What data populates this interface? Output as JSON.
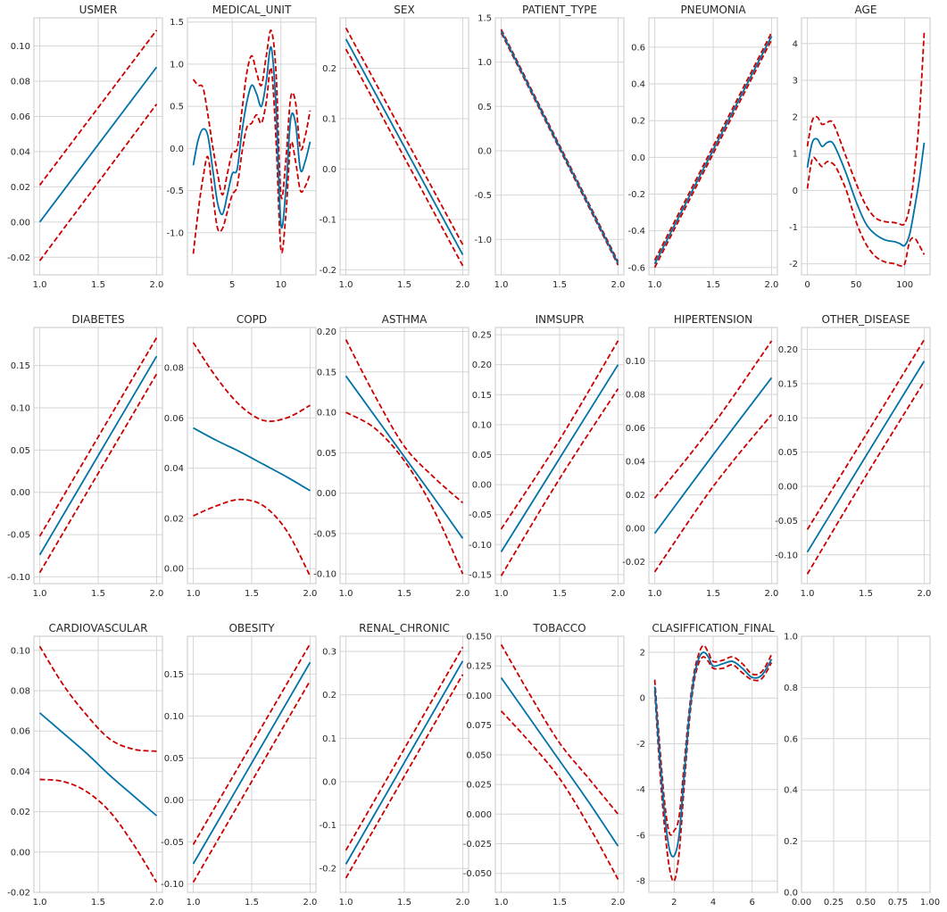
{
  "colors": {
    "mean": "#0072a8",
    "ci": "#cc0000",
    "grid": "#d6d6d6",
    "frame": "#c8c8c8"
  },
  "chart_data": [
    {
      "type": "line",
      "title": "USMER",
      "xlim": [
        0.95,
        2.05
      ],
      "ylim": [
        -0.03,
        0.116
      ],
      "xticks": [
        1,
        1.5,
        2
      ],
      "xtick_labels": [
        "1.0",
        "1.5",
        "2.0"
      ],
      "yticks": [
        -0.02,
        0,
        0.02,
        0.04,
        0.06,
        0.08,
        0.1
      ],
      "ytick_labels": [
        "-0.02",
        "0.00",
        "0.02",
        "0.04",
        "0.06",
        "0.08",
        "0.10"
      ],
      "x": [
        1,
        2
      ],
      "mean": [
        0.0,
        0.088
      ],
      "lower": [
        -0.022,
        0.067
      ],
      "upper": [
        0.021,
        0.109
      ]
    },
    {
      "type": "line",
      "title": "MEDICAL_UNIT",
      "xlim": [
        0.4,
        13.6
      ],
      "ylim": [
        -1.5,
        1.55
      ],
      "xticks": [
        5,
        10
      ],
      "xtick_labels": [
        "5",
        "10"
      ],
      "yticks": [
        -1,
        -0.5,
        0,
        0.5,
        1,
        1.5
      ],
      "ytick_labels": [
        "-1.0",
        "-0.5",
        "0.0",
        "0.5",
        "1.0",
        "1.5"
      ],
      "x": [
        1,
        1.5,
        2,
        2.5,
        3,
        3.5,
        4,
        4.5,
        5,
        5.5,
        6,
        6.5,
        7,
        7.5,
        8,
        8.5,
        9,
        9.5,
        10,
        10.5,
        11,
        11.5,
        12,
        12.5,
        13
      ],
      "mean": [
        -0.2,
        0.1,
        0.23,
        0.15,
        -0.25,
        -0.65,
        -0.78,
        -0.55,
        -0.3,
        -0.25,
        0.2,
        0.55,
        0.75,
        0.65,
        0.5,
        0.8,
        1.2,
        0.5,
        -0.9,
        -0.5,
        0.35,
        0.3,
        -0.25,
        -0.15,
        0.08
      ],
      "lower": [
        -1.25,
        -0.75,
        -0.35,
        -0.1,
        -0.55,
        -0.95,
        -0.95,
        -0.75,
        -0.55,
        -0.45,
        -0.05,
        0.25,
        0.3,
        0.4,
        0.3,
        0.55,
        0.95,
        0.1,
        -1.2,
        -0.8,
        0.05,
        -0.15,
        -0.5,
        -0.45,
        -0.3
      ],
      "upper": [
        0.82,
        0.75,
        0.72,
        0.4,
        0.02,
        -0.3,
        -0.55,
        -0.3,
        -0.05,
        0.0,
        0.45,
        0.9,
        1.1,
        0.9,
        0.75,
        1.1,
        1.4,
        0.9,
        -0.55,
        -0.15,
        0.6,
        0.55,
        0.0,
        0.15,
        0.45
      ]
    },
    {
      "type": "line",
      "title": "SEX",
      "xlim": [
        0.95,
        2.05
      ],
      "ylim": [
        -0.21,
        0.3
      ],
      "xticks": [
        1,
        1.5,
        2
      ],
      "xtick_labels": [
        "1.0",
        "1.5",
        "2.0"
      ],
      "yticks": [
        -0.2,
        -0.1,
        0,
        0.1,
        0.2
      ],
      "ytick_labels": [
        "-0.2",
        "-0.1",
        "0.0",
        "0.1",
        "0.2"
      ],
      "x": [
        1,
        2
      ],
      "mean": [
        0.258,
        -0.17
      ],
      "lower": [
        0.238,
        -0.192
      ],
      "upper": [
        0.28,
        -0.15
      ]
    },
    {
      "type": "line",
      "title": "PATIENT_TYPE",
      "xlim": [
        0.95,
        2.05
      ],
      "ylim": [
        -1.4,
        1.5
      ],
      "xticks": [
        1,
        1.5,
        2
      ],
      "xtick_labels": [
        "1.0",
        "1.5",
        "2.0"
      ],
      "yticks": [
        -1,
        -0.5,
        0,
        0.5,
        1,
        1.5
      ],
      "ytick_labels": [
        "-1.0",
        "-0.5",
        "0.0",
        "0.5",
        "1.0",
        "1.5"
      ],
      "x": [
        1,
        2
      ],
      "mean": [
        1.35,
        -1.27
      ],
      "lower": [
        1.33,
        -1.29
      ],
      "upper": [
        1.37,
        -1.25
      ]
    },
    {
      "type": "line",
      "title": "PNEUMONIA",
      "xlim": [
        0.95,
        2.05
      ],
      "ylim": [
        -0.64,
        0.76
      ],
      "xticks": [
        1,
        1.5,
        2
      ],
      "xtick_labels": [
        "1.0",
        "1.5",
        "2.0"
      ],
      "yticks": [
        -0.6,
        -0.4,
        -0.2,
        0,
        0.2,
        0.4,
        0.6
      ],
      "ytick_labels": [
        "-0.6",
        "-0.4",
        "-0.2",
        "0.0",
        "0.2",
        "0.4",
        "0.6"
      ],
      "x": [
        1,
        2
      ],
      "mean": [
        -0.58,
        0.66
      ],
      "lower": [
        -0.6,
        0.64
      ],
      "upper": [
        -0.56,
        0.68
      ]
    },
    {
      "type": "line",
      "title": "AGE",
      "xlim": [
        -6,
        126
      ],
      "ylim": [
        -2.3,
        4.7
      ],
      "xticks": [
        0,
        50,
        100
      ],
      "xtick_labels": [
        "0",
        "50",
        "100"
      ],
      "yticks": [
        -2,
        -1,
        0,
        1,
        2,
        3,
        4
      ],
      "ytick_labels": [
        "-2",
        "-1",
        "0",
        "1",
        "2",
        "3",
        "4"
      ],
      "x": [
        0,
        5,
        10,
        15,
        20,
        25,
        30,
        40,
        50,
        60,
        70,
        80,
        90,
        95,
        100,
        105,
        110,
        115,
        120
      ],
      "mean": [
        0.62,
        1.3,
        1.4,
        1.2,
        1.3,
        1.32,
        1.1,
        0.45,
        -0.3,
        -0.9,
        -1.2,
        -1.35,
        -1.4,
        -1.45,
        -1.5,
        -1.2,
        -0.5,
        0.3,
        1.3
      ],
      "lower": [
        0.05,
        0.85,
        0.8,
        0.65,
        0.78,
        0.75,
        0.6,
        0.0,
        -0.85,
        -1.45,
        -1.8,
        -1.95,
        -2.0,
        -2.05,
        -2.0,
        -1.4,
        -1.3,
        -1.5,
        -1.75
      ],
      "upper": [
        1.2,
        1.9,
        2.0,
        1.8,
        1.85,
        1.88,
        1.62,
        0.9,
        0.2,
        -0.4,
        -0.75,
        -0.85,
        -0.88,
        -0.92,
        -0.9,
        -0.45,
        0.5,
        2.0,
        4.3
      ]
    },
    {
      "type": "line",
      "title": "DIABETES",
      "xlim": [
        0.95,
        2.05
      ],
      "ylim": [
        -0.108,
        0.195
      ],
      "xticks": [
        1,
        1.5,
        2
      ],
      "xtick_labels": [
        "1.0",
        "1.5",
        "2.0"
      ],
      "yticks": [
        -0.1,
        -0.05,
        0,
        0.05,
        0.1,
        0.15
      ],
      "ytick_labels": [
        "-0.10",
        "-0.05",
        "0.00",
        "0.05",
        "0.10",
        "0.15"
      ],
      "x": [
        1,
        2
      ],
      "mean": [
        -0.074,
        0.161
      ],
      "lower": [
        -0.095,
        0.14
      ],
      "upper": [
        -0.052,
        0.183
      ]
    },
    {
      "type": "line",
      "title": "COPD",
      "xlim": [
        0.95,
        2.05
      ],
      "ylim": [
        -0.006,
        0.096
      ],
      "xticks": [
        1,
        1.5,
        2
      ],
      "xtick_labels": [
        "1.0",
        "1.5",
        "2.0"
      ],
      "yticks": [
        0,
        0.02,
        0.04,
        0.06,
        0.08
      ],
      "ytick_labels": [
        "0.00",
        "0.02",
        "0.04",
        "0.06",
        "0.08"
      ],
      "x": [
        1,
        1.2,
        1.4,
        1.6,
        1.8,
        2
      ],
      "mean": [
        0.056,
        0.051,
        0.0465,
        0.0415,
        0.0365,
        0.031
      ],
      "lower": [
        0.021,
        0.025,
        0.0275,
        0.025,
        0.015,
        -0.003
      ],
      "upper": [
        0.09,
        0.076,
        0.065,
        0.059,
        0.06,
        0.065
      ]
    },
    {
      "type": "line",
      "title": "ASTHMA",
      "xlim": [
        0.95,
        2.05
      ],
      "ylim": [
        -0.112,
        0.205
      ],
      "xticks": [
        1,
        1.5,
        2
      ],
      "xtick_labels": [
        "1.0",
        "1.5",
        "2.0"
      ],
      "yticks": [
        -0.1,
        -0.05,
        0,
        0.05,
        0.1,
        0.15,
        0.2
      ],
      "ytick_labels": [
        "-0.10",
        "-0.05",
        "0.00",
        "0.05",
        "0.10",
        "0.15",
        "0.20"
      ],
      "x": [
        1,
        1.25,
        1.5,
        1.75,
        2
      ],
      "mean": [
        0.145,
        0.095,
        0.045,
        -0.005,
        -0.056
      ],
      "lower": [
        0.1,
        0.08,
        0.04,
        -0.02,
        -0.1
      ],
      "upper": [
        0.19,
        0.12,
        0.058,
        0.02,
        -0.012
      ]
    },
    {
      "type": "line",
      "title": "INMSUPR",
      "xlim": [
        0.95,
        2.05
      ],
      "ylim": [
        -0.165,
        0.262
      ],
      "xticks": [
        1,
        1.5,
        2
      ],
      "xtick_labels": [
        "1.0",
        "1.5",
        "2.0"
      ],
      "yticks": [
        -0.15,
        -0.1,
        -0.05,
        0,
        0.05,
        0.1,
        0.15,
        0.2,
        0.25
      ],
      "ytick_labels": [
        "-0.15",
        "-0.10",
        "-0.05",
        "0.00",
        "0.05",
        "0.10",
        "0.15",
        "0.20",
        "0.25"
      ],
      "x": [
        1,
        1.5,
        2
      ],
      "mean": [
        -0.112,
        0.044,
        0.2
      ],
      "lower": [
        -0.152,
        0.01,
        0.16
      ],
      "upper": [
        -0.074,
        0.075,
        0.24
      ]
    },
    {
      "type": "line",
      "title": "HIPERTENSION",
      "xlim": [
        0.95,
        2.05
      ],
      "ylim": [
        -0.033,
        0.12
      ],
      "xticks": [
        1,
        1.5,
        2
      ],
      "xtick_labels": [
        "1.0",
        "1.5",
        "2.0"
      ],
      "yticks": [
        -0.02,
        0,
        0.02,
        0.04,
        0.06,
        0.08,
        0.1
      ],
      "ytick_labels": [
        "-0.02",
        "0.00",
        "0.02",
        "0.04",
        "0.06",
        "0.08",
        "0.10"
      ],
      "x": [
        1,
        1.5,
        2
      ],
      "mean": [
        -0.003,
        0.044,
        0.09
      ],
      "lower": [
        -0.026,
        0.025,
        0.068
      ],
      "upper": [
        0.018,
        0.062,
        0.112
      ]
    },
    {
      "type": "line",
      "title": "OTHER_DISEASE",
      "xlim": [
        0.95,
        2.05
      ],
      "ylim": [
        -0.142,
        0.232
      ],
      "xticks": [
        1,
        1.5,
        2
      ],
      "xtick_labels": [
        "1.0",
        "1.5",
        "2.0"
      ],
      "yticks": [
        -0.1,
        -0.05,
        0,
        0.05,
        0.1,
        0.15,
        0.2
      ],
      "ytick_labels": [
        "-0.10",
        "-0.05",
        "0.00",
        "0.05",
        "0.10",
        "0.15",
        "0.20"
      ],
      "x": [
        1,
        1.5,
        2
      ],
      "mean": [
        -0.096,
        0.044,
        0.183
      ],
      "lower": [
        -0.128,
        0.015,
        0.153
      ],
      "upper": [
        -0.063,
        0.075,
        0.214
      ]
    },
    {
      "type": "line",
      "title": "CARDIOVASCULAR",
      "xlim": [
        0.95,
        2.05
      ],
      "ylim": [
        -0.02,
        0.107
      ],
      "xticks": [
        1,
        1.5,
        2
      ],
      "xtick_labels": [
        "1.0",
        "1.5",
        "2.0"
      ],
      "yticks": [
        -0.02,
        0,
        0.02,
        0.04,
        0.06,
        0.08,
        0.1
      ],
      "ytick_labels": [
        "-0.02",
        "0.00",
        "0.02",
        "0.04",
        "0.06",
        "0.08",
        "0.10"
      ],
      "x": [
        1,
        1.2,
        1.4,
        1.6,
        1.8,
        2
      ],
      "mean": [
        0.069,
        0.059,
        0.049,
        0.038,
        0.028,
        0.018
      ],
      "lower": [
        0.036,
        0.035,
        0.03,
        0.02,
        0.004,
        -0.015
      ],
      "upper": [
        0.102,
        0.083,
        0.068,
        0.056,
        0.051,
        0.05
      ]
    },
    {
      "type": "line",
      "title": "OBESITY",
      "xlim": [
        0.95,
        2.05
      ],
      "ylim": [
        -0.11,
        0.195
      ],
      "xticks": [
        1,
        1.5,
        2
      ],
      "xtick_labels": [
        "1.0",
        "1.5",
        "2.0"
      ],
      "yticks": [
        -0.1,
        -0.05,
        0,
        0.05,
        0.1,
        0.15
      ],
      "ytick_labels": [
        "-0.10",
        "-0.05",
        "0.00",
        "0.05",
        "0.10",
        "0.15"
      ],
      "x": [
        1,
        2
      ],
      "mean": [
        -0.076,
        0.164
      ],
      "lower": [
        -0.098,
        0.142
      ],
      "upper": [
        -0.053,
        0.186
      ]
    },
    {
      "type": "line",
      "title": "RENAL_CHRONIC",
      "xlim": [
        0.95,
        2.05
      ],
      "ylim": [
        -0.255,
        0.335
      ],
      "xticks": [
        1,
        1.5,
        2
      ],
      "xtick_labels": [
        "1.0",
        "1.5",
        "2.0"
      ],
      "yticks": [
        -0.2,
        -0.1,
        0,
        0.1,
        0.2,
        0.3
      ],
      "ytick_labels": [
        "-0.2",
        "-0.1",
        "0.0",
        "0.1",
        "0.2",
        "0.3"
      ],
      "x": [
        1,
        2
      ],
      "mean": [
        -0.19,
        0.278
      ],
      "lower": [
        -0.222,
        0.247
      ],
      "upper": [
        -0.158,
        0.31
      ]
    },
    {
      "type": "line",
      "title": "TOBACCO",
      "xlim": [
        0.95,
        2.05
      ],
      "ylim": [
        -0.066,
        0.15
      ],
      "xticks": [
        1,
        1.5,
        2
      ],
      "xtick_labels": [
        "1.0",
        "1.5",
        "2.0"
      ],
      "yticks": [
        -0.05,
        -0.025,
        0,
        0.025,
        0.05,
        0.075,
        0.1,
        0.125,
        0.15
      ],
      "ytick_labels": [
        "-0.050",
        "-0.025",
        "0.000",
        "0.025",
        "0.050",
        "0.075",
        "0.100",
        "0.125",
        "0.150"
      ],
      "x": [
        1,
        1.25,
        1.5,
        1.75,
        2
      ],
      "mean": [
        0.115,
        0.08,
        0.045,
        0.01,
        -0.027
      ],
      "lower": [
        0.087,
        0.06,
        0.03,
        -0.01,
        -0.055
      ],
      "upper": [
        0.143,
        0.1,
        0.06,
        0.03,
        0.0
      ]
    },
    {
      "type": "line",
      "title": "CLASIFFICATION_FINAL",
      "xlim": [
        0.7,
        7.3
      ],
      "ylim": [
        -8.5,
        2.7
      ],
      "xticks": [
        2,
        4,
        6
      ],
      "xtick_labels": [
        "2",
        "4",
        "6"
      ],
      "yticks": [
        -8,
        -6,
        -4,
        -2,
        0,
        2
      ],
      "ytick_labels": [
        "-8",
        "-6",
        "-4",
        "-2",
        "0",
        "2"
      ],
      "x": [
        1,
        1.25,
        1.5,
        1.75,
        2,
        2.25,
        2.5,
        2.75,
        3,
        3.25,
        3.5,
        3.75,
        4,
        4.5,
        5,
        5.5,
        6,
        6.5,
        7
      ],
      "mean": [
        0.5,
        -2.5,
        -5.0,
        -6.6,
        -6.9,
        -6.0,
        -3.5,
        -1.0,
        0.8,
        1.7,
        2.0,
        1.8,
        1.4,
        1.5,
        1.6,
        1.3,
        0.9,
        1.0,
        1.7
      ],
      "lower": [
        0.3,
        -3.0,
        -5.6,
        -7.4,
        -8.0,
        -6.8,
        -4.0,
        -1.3,
        0.6,
        1.5,
        1.8,
        1.6,
        1.3,
        1.3,
        1.45,
        1.1,
        0.8,
        0.85,
        1.55
      ],
      "upper": [
        0.8,
        -2.0,
        -4.5,
        -5.9,
        -5.8,
        -5.2,
        -3.0,
        -0.7,
        1.0,
        1.9,
        2.3,
        2.0,
        1.6,
        1.65,
        1.8,
        1.5,
        1.05,
        1.15,
        1.9
      ]
    },
    {
      "type": "line",
      "title": "",
      "xlim": [
        0,
        1
      ],
      "ylim": [
        0,
        1
      ],
      "xticks": [
        0,
        0.25,
        0.5,
        0.75,
        1
      ],
      "xtick_labels": [
        "0.00",
        "0.25",
        "0.50",
        "0.75",
        "1.00"
      ],
      "yticks": [
        0,
        0.2,
        0.4,
        0.6,
        0.8,
        1
      ],
      "ytick_labels": [
        "0.0",
        "0.2",
        "0.4",
        "0.6",
        "0.8",
        "1.0"
      ],
      "x": [],
      "mean": [],
      "lower": [],
      "upper": []
    }
  ]
}
